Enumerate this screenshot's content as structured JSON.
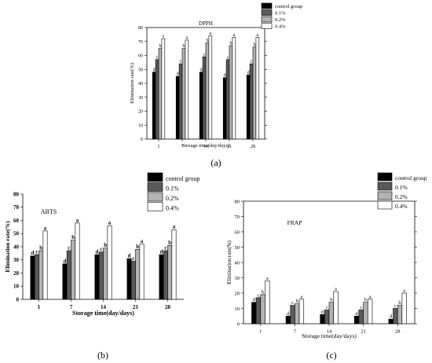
{
  "chart_data": [
    {
      "type": "bar",
      "title": "DPPH",
      "panel_label": "(a)",
      "xlabel": "Storage time(day/days)",
      "ylabel": "Elimination rate(%)",
      "ylim": [
        0,
        80
      ],
      "yticks": [
        0,
        10,
        20,
        30,
        40,
        50,
        60,
        70,
        80
      ],
      "categories": [
        "1",
        "7",
        "14",
        "21",
        "28"
      ],
      "legend_position": "top-right",
      "series": [
        {
          "name": "control group",
          "color": "#000000",
          "values": [
            48,
            45,
            48,
            44,
            46
          ],
          "labels": [
            "d",
            "d",
            "d",
            "d",
            "d"
          ]
        },
        {
          "name": "0.1%",
          "color": "#5a5a5a",
          "values": [
            57,
            54,
            59,
            57,
            54
          ],
          "labels": [
            "c",
            "c",
            "c",
            "c",
            "c"
          ]
        },
        {
          "name": "0.2%",
          "color": "#b3b3b3",
          "values": [
            65,
            65,
            69,
            67,
            66
          ],
          "labels": [
            "b",
            "b",
            "b",
            "b",
            "b"
          ]
        },
        {
          "name": "0.4%",
          "color": "#ffffff",
          "values": [
            72,
            71,
            74,
            73,
            73
          ],
          "labels": [
            "a",
            "a",
            "a",
            "a",
            "a"
          ]
        }
      ]
    },
    {
      "type": "bar",
      "title": "ABTS",
      "panel_label": "(b)",
      "xlabel": "Storage time(day/days)",
      "ylabel": "Elimination rate(%)",
      "ylim": [
        0,
        80
      ],
      "yticks": [
        0,
        10,
        20,
        30,
        40,
        50,
        60,
        70,
        80
      ],
      "categories": [
        "1",
        "7",
        "14",
        "21",
        "28"
      ],
      "legend_position": "top-right",
      "series": [
        {
          "name": "control group",
          "color": "#000000",
          "values": [
            33,
            27,
            34,
            31,
            34
          ],
          "labels": [
            "d",
            "d",
            "d",
            "d",
            "d"
          ]
        },
        {
          "name": "0.1%",
          "color": "#5a5a5a",
          "values": [
            34,
            37,
            36,
            29,
            37
          ],
          "labels": [
            "c",
            "c",
            "c",
            "c",
            "c"
          ]
        },
        {
          "name": "0.2%",
          "color": "#b3b3b3",
          "values": [
            37,
            45,
            39,
            38,
            41
          ],
          "labels": [
            "b",
            "b",
            "b",
            "b",
            "b"
          ]
        },
        {
          "name": "0.4%",
          "color": "#ffffff",
          "values": [
            52,
            58,
            56,
            42,
            53
          ],
          "labels": [
            "a",
            "a",
            "a",
            "a",
            "a"
          ]
        }
      ]
    },
    {
      "type": "bar",
      "title": "FRAP",
      "panel_label": "(c)",
      "xlabel": "Storage time(day/days)",
      "ylabel": "Elimination rate(%)",
      "ylim": [
        0,
        80
      ],
      "yticks": [
        0,
        10,
        20,
        30,
        40,
        50,
        60,
        70,
        80
      ],
      "categories": [
        "1",
        "7",
        "14",
        "21",
        "28"
      ],
      "legend_position": "top-right",
      "series": [
        {
          "name": "control group",
          "color": "#000000",
          "values": [
            14,
            5,
            6,
            5,
            3
          ],
          "labels": [
            "d",
            "d",
            "d",
            "d",
            "d"
          ]
        },
        {
          "name": "0.1%",
          "color": "#5a5a5a",
          "values": [
            17,
            12,
            9,
            9,
            10
          ],
          "labels": [
            "c",
            "c",
            "c",
            "c",
            "c"
          ]
        },
        {
          "name": "0.2%",
          "color": "#b3b3b3",
          "values": [
            19,
            13,
            14,
            14,
            12
          ],
          "labels": [
            "b",
            "b",
            "b",
            "b",
            "b"
          ]
        },
        {
          "name": "0.4%",
          "color": "#ffffff",
          "values": [
            28,
            16,
            21,
            16,
            20
          ],
          "labels": [
            "a",
            "a",
            "a",
            "a",
            "a"
          ]
        }
      ]
    }
  ]
}
